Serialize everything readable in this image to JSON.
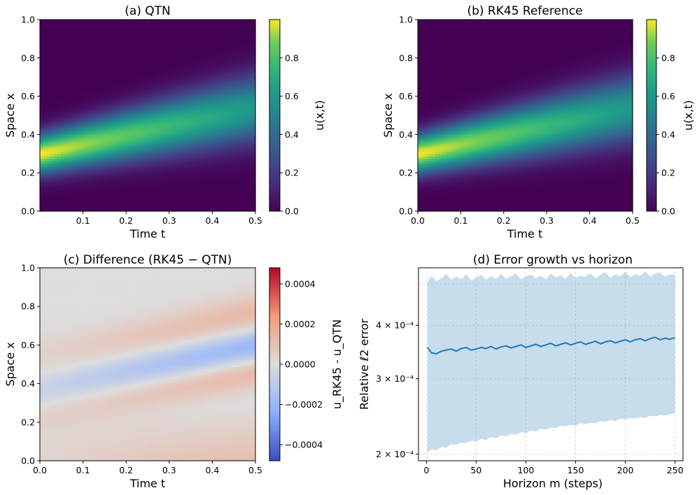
{
  "chart_data": [
    {
      "id": "a",
      "type": "heatmap",
      "title": "(a) QTN",
      "xlabel": "Time t",
      "ylabel": "Space x",
      "xlim": [
        0.0,
        0.5
      ],
      "ylim": [
        0.0,
        1.0
      ],
      "xticks": [
        "0.1",
        "0.2",
        "0.3",
        "0.4",
        "0.5"
      ],
      "xtick_values": [
        0.1,
        0.2,
        0.3,
        0.4,
        0.5
      ],
      "yticks": [
        "0.0",
        "0.2",
        "0.4",
        "0.6",
        "0.8",
        "1.0"
      ],
      "ytick_values": [
        0.0,
        0.2,
        0.4,
        0.6,
        0.8,
        1.0
      ],
      "field": {
        "model": "advected-gaussian",
        "center_start": 0.3,
        "center_end": 0.54,
        "width_start": 0.07,
        "width_end": 0.12,
        "peak_start": 1.0,
        "peak_end": 0.6
      },
      "colorbar": {
        "label": "u(x,t)",
        "colormap": "viridis",
        "range": [
          0.0,
          1.0
        ],
        "ticks": [
          "0.0",
          "0.2",
          "0.4",
          "0.6",
          "0.8"
        ],
        "tick_values": [
          0.0,
          0.2,
          0.4,
          0.6,
          0.8
        ]
      }
    },
    {
      "id": "b",
      "type": "heatmap",
      "title": "(b) RK45 Reference",
      "xlabel": "Time t",
      "ylabel": "Space x",
      "xlim": [
        0.0,
        0.5
      ],
      "ylim": [
        0.0,
        1.0
      ],
      "xticks": [
        "0.0",
        "0.1",
        "0.2",
        "0.3",
        "0.4",
        "0.5"
      ],
      "xtick_values": [
        0.0,
        0.1,
        0.2,
        0.3,
        0.4,
        0.5
      ],
      "yticks": [
        "0.0",
        "0.2",
        "0.4",
        "0.6",
        "0.8",
        "1.0"
      ],
      "ytick_values": [
        0.0,
        0.2,
        0.4,
        0.6,
        0.8,
        1.0
      ],
      "field": {
        "model": "advected-gaussian",
        "center_start": 0.3,
        "center_end": 0.54,
        "width_start": 0.07,
        "width_end": 0.12,
        "peak_start": 1.0,
        "peak_end": 0.6
      },
      "colorbar": {
        "label": "u(x,t)",
        "colormap": "viridis",
        "range": [
          0.0,
          1.0
        ],
        "ticks": [
          "0.0",
          "0.2",
          "0.4",
          "0.6",
          "0.8"
        ],
        "tick_values": [
          0.0,
          0.2,
          0.4,
          0.6,
          0.8
        ]
      }
    },
    {
      "id": "c",
      "type": "heatmap",
      "title": "(c) Difference (RK45 − QTN)",
      "xlabel": "Time t",
      "ylabel": "Space x",
      "xlim": [
        0.0,
        0.5
      ],
      "ylim": [
        0.0,
        1.0
      ],
      "xticks": [
        "0.0",
        "0.1",
        "0.2",
        "0.3",
        "0.4",
        "0.5"
      ],
      "xtick_values": [
        0.0,
        0.1,
        0.2,
        0.3,
        0.4,
        0.5
      ],
      "yticks": [
        "0.0",
        "0.2",
        "0.4",
        "0.6",
        "0.8",
        "1.0"
      ],
      "ytick_values": [
        0.0,
        0.2,
        0.4,
        0.6,
        0.8,
        1.0
      ],
      "field": {
        "model": "difference-bands",
        "center_start": 0.37,
        "center_end": 0.6
      },
      "colorbar": {
        "label": "u_RK45 - u_QTN",
        "colormap": "coolwarm",
        "range": [
          -0.00048,
          0.00048
        ],
        "ticks": [
          "−0.0004",
          "−0.0002",
          "0.0000",
          "0.0002",
          "0.0004"
        ],
        "tick_values": [
          -0.0004,
          -0.0002,
          0.0,
          0.0002,
          0.0004
        ]
      }
    },
    {
      "id": "d",
      "type": "line",
      "title": "(d) Error growth vs horizon",
      "xlabel": "Horizon m (steps)",
      "ylabel": "Relative ℓ2 error",
      "yscale": "log",
      "xlim": [
        -8,
        258
      ],
      "ylim": [
        0.000193,
        0.000545
      ],
      "grid": true,
      "xticks": [
        "0",
        "50",
        "100",
        "150",
        "200",
        "250"
      ],
      "xtick_values": [
        0,
        50,
        100,
        150,
        200,
        250
      ],
      "yticks": [
        "2 × 10⁻⁴",
        "3 × 10⁻⁴",
        "4 × 10⁻⁴"
      ],
      "ytick_values": [
        0.0002,
        0.0003,
        0.0004
      ],
      "series": [
        {
          "name": "mean",
          "color": "#1f77b4",
          "x": [
            1,
            5,
            10,
            15,
            20,
            25,
            30,
            35,
            40,
            45,
            50,
            55,
            60,
            65,
            70,
            75,
            80,
            85,
            90,
            95,
            100,
            105,
            110,
            115,
            120,
            125,
            130,
            135,
            140,
            145,
            150,
            155,
            160,
            165,
            170,
            175,
            180,
            185,
            190,
            195,
            200,
            205,
            210,
            215,
            220,
            225,
            230,
            235,
            240,
            245,
            250
          ],
          "values": [
            0.000355,
            0.000345,
            0.000343,
            0.000348,
            0.00035,
            0.000352,
            0.000348,
            0.000353,
            0.000355,
            0.00035,
            0.000352,
            0.000355,
            0.000353,
            0.000357,
            0.000352,
            0.000356,
            0.000358,
            0.000354,
            0.000357,
            0.00036,
            0.000355,
            0.000358,
            0.000361,
            0.000357,
            0.00036,
            0.000363,
            0.000358,
            0.000361,
            0.000364,
            0.00036,
            0.000363,
            0.000366,
            0.000361,
            0.000364,
            0.000367,
            0.000362,
            0.000366,
            0.000368,
            0.000364,
            0.000367,
            0.00037,
            0.000366,
            0.00037,
            0.000372,
            0.000368,
            0.000372,
            0.000375,
            0.00037,
            0.000373,
            0.000371,
            0.000374
          ]
        },
        {
          "name": "band-upper",
          "color": "#1f77b4",
          "opacity": 0.25,
          "x": [
            1,
            5,
            10,
            15,
            20,
            25,
            30,
            35,
            40,
            45,
            50,
            55,
            60,
            65,
            70,
            75,
            80,
            85,
            90,
            95,
            100,
            105,
            110,
            115,
            120,
            125,
            130,
            135,
            140,
            145,
            150,
            155,
            160,
            165,
            170,
            175,
            180,
            185,
            190,
            195,
            200,
            205,
            210,
            215,
            220,
            225,
            230,
            235,
            240,
            245,
            250
          ],
          "values": [
            0.000505,
            0.000522,
            0.000508,
            0.000515,
            0.000528,
            0.00051,
            0.00052,
            0.000512,
            0.000526,
            0.000509,
            0.000517,
            0.000524,
            0.000511,
            0.000522,
            0.000513,
            0.000527,
            0.000514,
            0.000521,
            0.000529,
            0.000512,
            0.00052,
            0.000526,
            0.000515,
            0.000523,
            0.000512,
            0.000528,
            0.000517,
            0.000524,
            0.000514,
            0.00053,
            0.000516,
            0.000523,
            0.000519,
            0.000529,
            0.000515,
            0.000525,
            0.000532,
            0.000517,
            0.000526,
            0.000521,
            0.000533,
            0.000518,
            0.000527,
            0.000522,
            0.000534,
            0.00052,
            0.000528,
            0.000531,
            0.000519,
            0.000526,
            0.000524
          ]
        },
        {
          "name": "band-lower",
          "color": "#1f77b4",
          "opacity": 0.25,
          "x": [
            1,
            5,
            10,
            15,
            20,
            25,
            30,
            35,
            40,
            45,
            50,
            55,
            60,
            65,
            70,
            75,
            80,
            85,
            90,
            95,
            100,
            105,
            110,
            115,
            120,
            125,
            130,
            135,
            140,
            145,
            150,
            155,
            160,
            165,
            170,
            175,
            180,
            185,
            190,
            195,
            200,
            205,
            210,
            215,
            220,
            225,
            230,
            235,
            240,
            245,
            250
          ],
          "values": [
            0.000202,
            0.000205,
            0.000204,
            0.000208,
            0.000207,
            0.000211,
            0.00021,
            0.000213,
            0.000212,
            0.000215,
            0.000214,
            0.000217,
            0.000216,
            0.000219,
            0.000218,
            0.000221,
            0.00022,
            0.000223,
            0.000222,
            0.000225,
            0.000224,
            0.000227,
            0.000226,
            0.000229,
            0.000228,
            0.000231,
            0.00023,
            0.000233,
            0.000232,
            0.000234,
            0.000233,
            0.000236,
            0.000235,
            0.000237,
            0.000236,
            0.000239,
            0.000238,
            0.00024,
            0.000239,
            0.000242,
            0.000241,
            0.000243,
            0.000242,
            0.000244,
            0.000243,
            0.000246,
            0.000245,
            0.000247,
            0.000246,
            0.000248,
            0.000249
          ]
        }
      ]
    }
  ]
}
